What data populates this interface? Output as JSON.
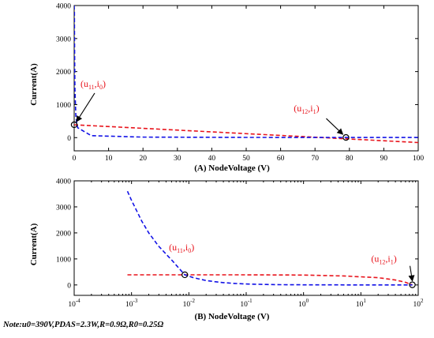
{
  "note": "Note:u0=390V,PDAS=2.3W,R=0.9Ω,R0=0.25Ω",
  "colors": {
    "red": "#e8141c",
    "blue": "#1212e6",
    "axis": "#000000"
  },
  "chart_data": [
    {
      "id": "A",
      "type": "line",
      "xscale": "linear",
      "xlabel": "(A) NodeVoltage (V)",
      "ylabel": "Current(A)",
      "xlim": [
        0,
        100
      ],
      "ylim": [
        -400,
        4000
      ],
      "xticks": [
        0,
        10,
        20,
        30,
        40,
        50,
        60,
        70,
        80,
        90,
        100
      ],
      "xtick_labels": [
        "0",
        "10",
        "20",
        "30",
        "40",
        "50",
        "60",
        "70",
        "80",
        "90",
        "100"
      ],
      "yticks": [
        0,
        1000,
        2000,
        3000,
        4000
      ],
      "ytick_labels": [
        "0",
        "1000",
        "2000",
        "3000",
        "4000"
      ],
      "series": [
        {
          "color": "red",
          "style": "dashed",
          "x": [
            0,
            100
          ],
          "y": [
            390,
            -150
          ]
        },
        {
          "color": "blue",
          "style": "dashed",
          "x": [
            0,
            0.07,
            0.1,
            0.2,
            0.5,
            1,
            5,
            20,
            50,
            100
          ],
          "y": [
            4000,
            3800,
            3000,
            1500,
            600,
            300,
            60,
            15,
            6,
            3
          ]
        }
      ],
      "points": [
        {
          "x": 0,
          "y": 390,
          "label_main": "(u",
          "label_sub": "11",
          "label_mid": ",i",
          "label_sub2": "0",
          "label_end": ")"
        },
        {
          "x": 79,
          "y": 5,
          "label_main": "(u",
          "label_sub": "12",
          "label_mid": ",i",
          "label_sub2": "1",
          "label_end": ")"
        }
      ]
    },
    {
      "id": "B",
      "type": "line",
      "xscale": "log",
      "xlabel": "(B) NodeVoltage (V)",
      "ylabel": "Current(A)",
      "xlim": [
        0.0001,
        100
      ],
      "ylim": [
        -400,
        4000
      ],
      "xticks": [
        0.0001,
        0.001,
        0.01,
        0.1,
        1,
        10,
        100
      ],
      "xtick_base": [
        "10",
        "10",
        "10",
        "10",
        "10",
        "10",
        "10"
      ],
      "xtick_exp": [
        "-4",
        "-3",
        "-2",
        "-1",
        "0",
        "1",
        "2"
      ],
      "yticks": [
        0,
        1000,
        2000,
        3000,
        4000
      ],
      "ytick_labels": [
        "0",
        "1000",
        "2000",
        "3000",
        "4000"
      ],
      "series": [
        {
          "color": "red",
          "style": "dashed",
          "x": [
            0.00085,
            0.01,
            0.1,
            1,
            5,
            20,
            40,
            60,
            79
          ],
          "y": [
            390,
            389,
            388,
            380,
            345,
            280,
            190,
            100,
            5
          ]
        },
        {
          "color": "blue",
          "style": "dashed",
          "x": [
            0.00085,
            0.001,
            0.0015,
            0.002,
            0.003,
            0.005,
            0.0085,
            0.012,
            0.02,
            0.035,
            0.06,
            0.1,
            0.2,
            0.5,
            1,
            10,
            79
          ],
          "y": [
            3600,
            3250,
            2460,
            2000,
            1480,
            960,
            390,
            280,
            170,
            100,
            60,
            37,
            20,
            8,
            5,
            1,
            0
          ]
        }
      ],
      "points": [
        {
          "x": 0.0085,
          "y": 390,
          "label_main": "(u",
          "label_sub": "11",
          "label_mid": ",i",
          "label_sub2": "0",
          "label_end": ")"
        },
        {
          "x": 79,
          "y": 5,
          "label_main": "(u",
          "label_sub": "12",
          "label_mid": ",i",
          "label_sub2": "1",
          "label_end": ")"
        }
      ]
    }
  ]
}
